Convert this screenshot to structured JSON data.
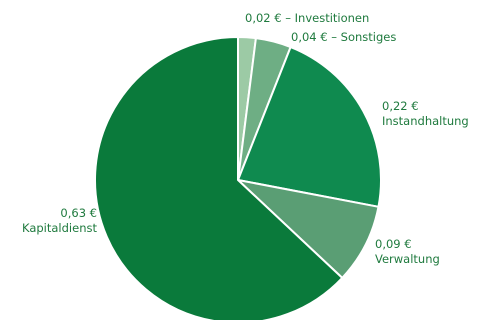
{
  "chart_data": {
    "type": "pie",
    "title": "",
    "series": [
      {
        "value": 0.02,
        "value_label": "0,02 €",
        "category": "Investitionen",
        "color": "#9ccaa5"
      },
      {
        "value": 0.04,
        "value_label": "0,04 €",
        "category": "Sonstiges",
        "color": "#6eae84"
      },
      {
        "value": 0.22,
        "value_label": "0,22 €",
        "category": "Instandhaltung",
        "color": "#0f8a4f"
      },
      {
        "value": 0.09,
        "value_label": "0,09 €",
        "category": "Verwaltung",
        "color": "#5a9e74"
      },
      {
        "value": 0.63,
        "value_label": "0,63 €",
        "category": "Kapitaldienst",
        "color": "#0a7a3b"
      }
    ],
    "start_direction": "top",
    "direction": "clockwise",
    "separator": " – "
  }
}
